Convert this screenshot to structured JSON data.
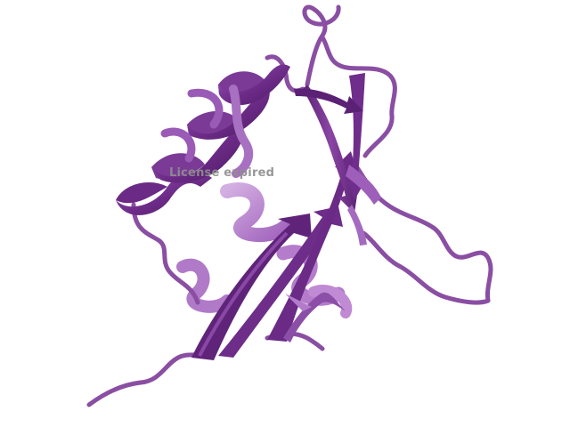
{
  "scene": {
    "subject": "protein-cartoon",
    "colors": {
      "background": "#ffffff",
      "dark": "#5e2477",
      "mid": "#7e3d98",
      "light": "#a765c2",
      "pale": "#c79ad8",
      "coil": "#8a4ea3"
    }
  },
  "watermark": {
    "text": "License expired"
  }
}
